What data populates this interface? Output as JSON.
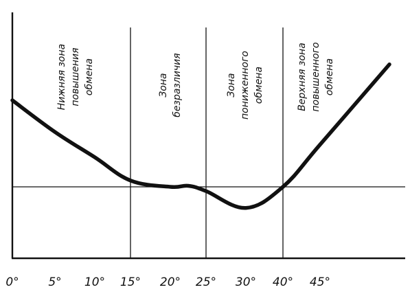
{
  "chart_data": {
    "type": "line",
    "title": "",
    "xlabel": "",
    "ylabel": "",
    "grid": false,
    "x_tick_labels": [
      "0°",
      "5°",
      "10°",
      "15°",
      "20°",
      "25°",
      "30°",
      "40°",
      "45°"
    ],
    "zone_boundaries": [
      "15°",
      "25°",
      "40°"
    ],
    "zones": [
      {
        "lines": [
          "Нижняя зона",
          "повышения",
          "обмена"
        ]
      },
      {
        "lines": [
          "Зона",
          "безразличия"
        ]
      },
      {
        "lines": [
          "Зона",
          "пониженного",
          "обмена"
        ]
      },
      {
        "lines": [
          "Верхняя зона",
          "повышенного",
          "обмена"
        ]
      }
    ],
    "reference_line": {
      "y": 0
    },
    "ylim": [
      -1.2,
      4.9
    ],
    "series": [
      {
        "name": "",
        "points": [
          {
            "x": "0°",
            "y": 4.1
          },
          {
            "x": "5°",
            "y": 2.6
          },
          {
            "x": "10°",
            "y": 1.4
          },
          {
            "x": "15°",
            "y": 0.3
          },
          {
            "x": "20°",
            "y": 0.0
          },
          {
            "x": "22.5°",
            "y": 0.05
          },
          {
            "x": "25°",
            "y": -0.2
          },
          {
            "x": "30°",
            "y": -1.0
          },
          {
            "x": "40°",
            "y": 0.0
          },
          {
            "x": "45°",
            "y": 2.0
          },
          {
            "x": "50°",
            "y": 5.8
          }
        ]
      }
    ]
  }
}
